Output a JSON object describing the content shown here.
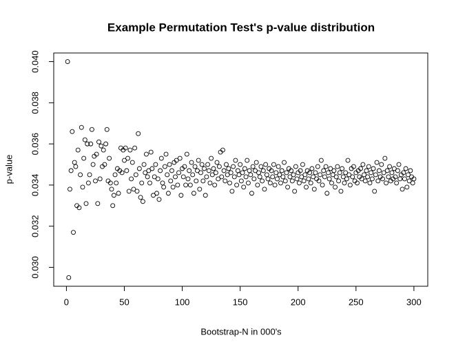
{
  "chart_data": {
    "type": "scatter",
    "title": "Example Permutation Test's p-value distribution",
    "x_label": "Bootstrap-N in 000's",
    "y_label": "p-value",
    "xlim": [
      -10.96,
      311.96
    ],
    "ylim": [
      0.02908,
      0.04042
    ],
    "xticks": [
      0,
      50,
      100,
      150,
      200,
      250,
      300
    ],
    "yticks": [
      {
        "value": 0.03,
        "label": "0.030"
      },
      0.032,
      0.034,
      0.036,
      0.038,
      {
        "value": 0.04,
        "label": "0.040"
      }
    ],
    "color": "#000000",
    "series": [
      {
        "x": [
          1,
          2,
          3,
          4,
          5,
          6,
          7,
          8,
          9,
          10,
          11,
          12,
          13,
          14,
          15,
          16,
          17,
          18,
          19,
          20,
          21,
          22,
          23,
          24,
          25,
          26,
          27,
          28,
          29,
          30,
          31,
          32,
          33,
          34,
          35,
          36,
          37,
          38,
          39,
          40,
          41,
          42,
          43,
          44,
          45,
          46,
          47,
          48,
          49,
          50,
          51,
          52,
          53,
          54,
          55,
          56,
          57,
          58,
          59,
          60,
          61,
          62,
          63,
          64,
          65,
          66,
          67,
          68,
          69,
          70,
          71,
          72,
          73,
          74,
          75,
          76,
          77,
          78,
          79,
          80,
          81,
          82,
          83,
          84,
          85,
          86,
          87,
          88,
          89,
          90,
          91,
          92,
          93,
          94,
          95,
          96,
          97,
          98,
          99,
          100,
          101,
          102,
          103,
          104,
          105,
          106,
          107,
          108,
          109,
          110,
          111,
          112,
          113,
          114,
          115,
          116,
          117,
          118,
          119,
          120,
          121,
          122,
          123,
          124,
          125,
          126,
          127,
          128,
          129,
          130,
          131,
          132,
          133,
          134,
          135,
          136,
          137,
          138,
          139,
          140,
          141,
          142,
          143,
          144,
          145,
          146,
          147,
          148,
          149,
          150,
          151,
          152,
          153,
          154,
          155,
          156,
          157,
          158,
          159,
          160,
          161,
          162,
          163,
          164,
          165,
          166,
          167,
          168,
          169,
          170,
          171,
          172,
          173,
          174,
          175,
          176,
          177,
          178,
          179,
          180,
          181,
          182,
          183,
          184,
          185,
          186,
          187,
          188,
          189,
          190,
          191,
          192,
          193,
          194,
          195,
          196,
          197,
          198,
          199,
          200,
          201,
          202,
          203,
          204,
          205,
          206,
          207,
          208,
          209,
          210,
          211,
          212,
          213,
          214,
          215,
          216,
          217,
          218,
          219,
          220,
          221,
          222,
          223,
          224,
          225,
          226,
          227,
          228,
          229,
          230,
          231,
          232,
          233,
          234,
          235,
          236,
          237,
          238,
          239,
          240,
          241,
          242,
          243,
          244,
          245,
          246,
          247,
          248,
          249,
          250,
          251,
          252,
          253,
          254,
          255,
          256,
          257,
          258,
          259,
          260,
          261,
          262,
          263,
          264,
          265,
          266,
          267,
          268,
          269,
          270,
          271,
          272,
          273,
          274,
          275,
          276,
          277,
          278,
          279,
          280,
          281,
          282,
          283,
          284,
          285,
          286,
          287,
          288,
          289,
          290,
          291,
          292,
          293,
          294,
          295,
          296,
          297,
          298,
          299,
          300
        ],
        "values": [
          0.04,
          0.0295,
          0.0338,
          0.0347,
          0.0366,
          0.0317,
          0.0351,
          0.0349,
          0.033,
          0.0357,
          0.0329,
          0.0345,
          0.0368,
          0.0339,
          0.0353,
          0.0362,
          0.0331,
          0.036,
          0.0341,
          0.0345,
          0.036,
          0.0367,
          0.035,
          0.0354,
          0.0342,
          0.0355,
          0.0331,
          0.0361,
          0.0343,
          0.0359,
          0.0349,
          0.0357,
          0.035,
          0.036,
          0.0367,
          0.0342,
          0.0353,
          0.0341,
          0.0338,
          0.033,
          0.0335,
          0.0345,
          0.0341,
          0.0348,
          0.0336,
          0.0347,
          0.0358,
          0.0346,
          0.0357,
          0.0352,
          0.0358,
          0.0347,
          0.0353,
          0.0337,
          0.0357,
          0.0343,
          0.0351,
          0.0338,
          0.0358,
          0.0345,
          0.0337,
          0.0365,
          0.0348,
          0.0334,
          0.0341,
          0.0332,
          0.035,
          0.0346,
          0.0355,
          0.0344,
          0.0347,
          0.0341,
          0.0356,
          0.0348,
          0.0335,
          0.0344,
          0.035,
          0.0336,
          0.0343,
          0.0333,
          0.0347,
          0.0353,
          0.0341,
          0.0339,
          0.0349,
          0.0355,
          0.0345,
          0.0336,
          0.035,
          0.0342,
          0.0347,
          0.0339,
          0.0351,
          0.0344,
          0.0352,
          0.034,
          0.0346,
          0.0353,
          0.0335,
          0.0348,
          0.0344,
          0.0349,
          0.034,
          0.0355,
          0.0343,
          0.0347,
          0.034,
          0.0351,
          0.0345,
          0.0336,
          0.0349,
          0.0342,
          0.0347,
          0.0352,
          0.0338,
          0.0346,
          0.035,
          0.0342,
          0.0348,
          0.0335,
          0.0344,
          0.035,
          0.0347,
          0.0341,
          0.0353,
          0.0345,
          0.0348,
          0.034,
          0.0346,
          0.0351,
          0.0343,
          0.0349,
          0.0356,
          0.0344,
          0.0357,
          0.0347,
          0.0342,
          0.035,
          0.0345,
          0.0348,
          0.0341,
          0.0346,
          0.0337,
          0.0349,
          0.0344,
          0.0352,
          0.034,
          0.0347,
          0.0345,
          0.035,
          0.0342,
          0.0346,
          0.0339,
          0.0348,
          0.0344,
          0.0352,
          0.0341,
          0.0347,
          0.0345,
          0.0336,
          0.0349,
          0.0343,
          0.0347,
          0.0351,
          0.034,
          0.0346,
          0.0344,
          0.0349,
          0.0342,
          0.0347,
          0.0338,
          0.035,
          0.0345,
          0.0343,
          0.0348,
          0.0341,
          0.0347,
          0.0344,
          0.035,
          0.034,
          0.0346,
          0.0343,
          0.0349,
          0.0345,
          0.0341,
          0.0347,
          0.0344,
          0.0351,
          0.0342,
          0.0346,
          0.0339,
          0.0348,
          0.0344,
          0.0347,
          0.0342,
          0.0345,
          0.0337,
          0.0349,
          0.0343,
          0.0346,
          0.0341,
          0.0347,
          0.0344,
          0.035,
          0.0342,
          0.0345,
          0.0339,
          0.0347,
          0.0343,
          0.0346,
          0.0341,
          0.0348,
          0.0344,
          0.0338,
          0.0346,
          0.0343,
          0.0349,
          0.0342,
          0.0345,
          0.0352,
          0.034,
          0.0347,
          0.0344,
          0.0349,
          0.0336,
          0.0346,
          0.0343,
          0.0348,
          0.0341,
          0.0345,
          0.0347,
          0.0339,
          0.0344,
          0.0349,
          0.0342,
          0.0346,
          0.0337,
          0.0348,
          0.0344,
          0.0341,
          0.0346,
          0.0343,
          0.0352,
          0.0345,
          0.034,
          0.0348,
          0.0344,
          0.0349,
          0.0342,
          0.0346,
          0.0341,
          0.0347,
          0.0344,
          0.0348,
          0.0343,
          0.035,
          0.0345,
          0.0342,
          0.0347,
          0.0344,
          0.0349,
          0.0341,
          0.0346,
          0.0343,
          0.0348,
          0.0337,
          0.0345,
          0.0351,
          0.0342,
          0.0347,
          0.0344,
          0.035,
          0.0343,
          0.0346,
          0.0353,
          0.0341,
          0.0347,
          0.0344,
          0.0349,
          0.0342,
          0.0346,
          0.0343,
          0.0348,
          0.0344,
          0.0341,
          0.0347,
          0.035,
          0.0343,
          0.0345,
          0.0338,
          0.0346,
          0.0343,
          0.0348,
          0.0339,
          0.0345,
          0.0342,
          0.0347,
          0.0344,
          0.0341,
          0.0343
        ]
      }
    ]
  }
}
